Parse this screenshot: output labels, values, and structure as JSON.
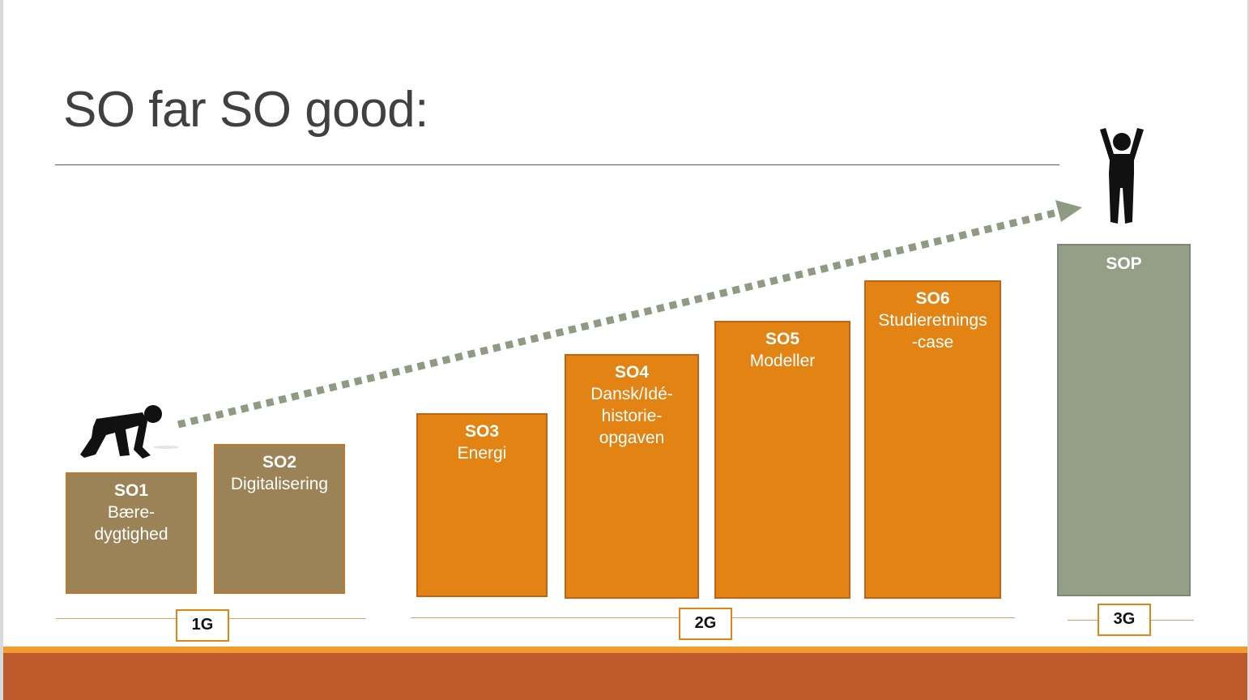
{
  "slide": {
    "title": "SO far SO good:"
  },
  "colors": {
    "year1": "#9b8257",
    "year2": "#e38313",
    "final": "#959f87",
    "arrow": "#8f9a82",
    "footer": "#bd5a2b",
    "footer_stripe": "#f39a2e"
  },
  "items": [
    {
      "code": "SO1",
      "name": "Bære-\ndygtighed"
    },
    {
      "code": "SO2",
      "name": "Digitalisering"
    },
    {
      "code": "SO3",
      "name": "Energi"
    },
    {
      "code": "SO4",
      "name": "Dansk/Idé-\nhistorie-\nopgaven"
    },
    {
      "code": "SO5",
      "name": "Modeller"
    },
    {
      "code": "SO6",
      "name": "Studieretnings\n-case"
    },
    {
      "code": "SOP",
      "name": ""
    }
  ],
  "years": [
    "1G",
    "2G",
    "3G"
  ],
  "icons": {
    "start": "runner-crouching-icon",
    "finish": "person-celebrating-icon",
    "progress": "dotted-arrow"
  }
}
